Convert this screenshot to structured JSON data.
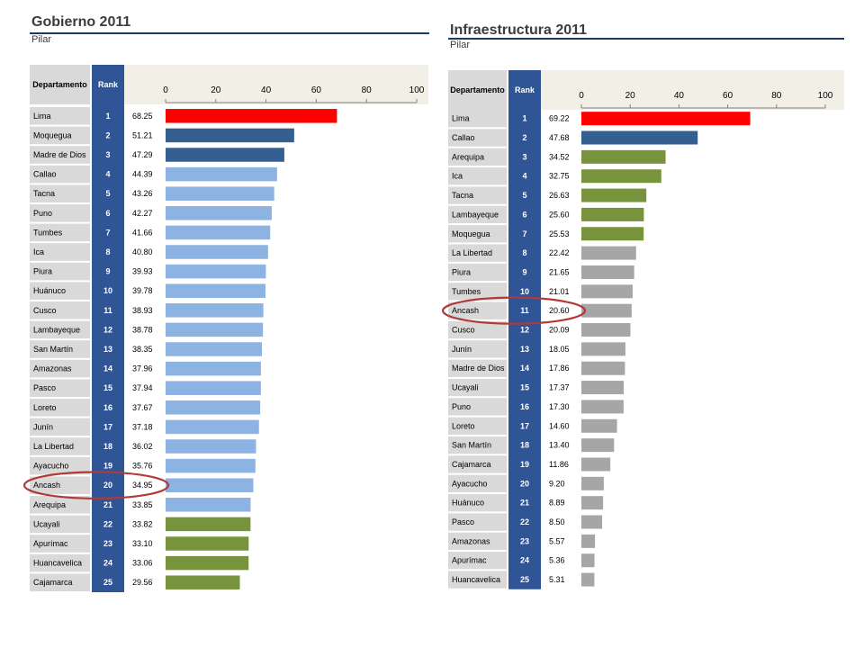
{
  "chart_data": [
    {
      "type": "bar",
      "title": "Gobierno 2011",
      "subtitle": "Pilar",
      "columns": {
        "dept": "Departamento",
        "rank": "Rank"
      },
      "xlim": [
        0,
        100
      ],
      "xticks": [
        0,
        20,
        40,
        60,
        80,
        100
      ],
      "orientation": "horizontal",
      "highlighted_category": "Ancash",
      "categories": [
        "Lima",
        "Moquegua",
        "Madre de Dios",
        "Callao",
        "Tacna",
        "Puno",
        "Tumbes",
        "Ica",
        "Piura",
        "Huánuco",
        "Cusco",
        "Lambayeque",
        "San Martín",
        "Amazonas",
        "Pasco",
        "Loreto",
        "Junín",
        "La Libertad",
        "Ayacucho",
        "Ancash",
        "Arequipa",
        "Ucayali",
        "Apurímac",
        "Huancavelica",
        "Cajamarca"
      ],
      "ranks": [
        1,
        2,
        3,
        4,
        5,
        6,
        7,
        8,
        9,
        10,
        11,
        12,
        13,
        14,
        15,
        16,
        17,
        18,
        19,
        20,
        21,
        22,
        23,
        24,
        25
      ],
      "values": [
        68.25,
        51.21,
        47.29,
        44.39,
        43.26,
        42.27,
        41.66,
        40.8,
        39.93,
        39.78,
        38.93,
        38.78,
        38.35,
        37.96,
        37.94,
        37.67,
        37.18,
        36.02,
        35.76,
        34.95,
        33.85,
        33.82,
        33.1,
        33.06,
        29.56
      ],
      "labels": [
        "68.25",
        "51.21",
        "47.29",
        "44.39",
        "43.26",
        "42.27",
        "41.66",
        "40.80",
        "39.93",
        "39.78",
        "38.93",
        "38.78",
        "38.35",
        "37.96",
        "37.94",
        "37.67",
        "37.18",
        "36.02",
        "35.76",
        "34.95",
        "33.85",
        "33.82",
        "33.10",
        "33.06",
        "29.56"
      ],
      "colors": [
        "#ff0000",
        "#365f91",
        "#365f91",
        "#8db3e2",
        "#8db3e2",
        "#8db3e2",
        "#8db3e2",
        "#8db3e2",
        "#8db3e2",
        "#8db3e2",
        "#8db3e2",
        "#8db3e2",
        "#8db3e2",
        "#8db3e2",
        "#8db3e2",
        "#8db3e2",
        "#8db3e2",
        "#8db3e2",
        "#8db3e2",
        "#8db3e2",
        "#8db3e2",
        "#77933c",
        "#77933c",
        "#77933c",
        "#77933c"
      ]
    },
    {
      "type": "bar",
      "title": "Infraestructura 2011",
      "subtitle": "Pilar",
      "columns": {
        "dept": "Departamento",
        "rank": "Rank"
      },
      "xlim": [
        0,
        100
      ],
      "xticks": [
        0,
        20,
        40,
        60,
        80,
        100
      ],
      "orientation": "horizontal",
      "highlighted_category": "Ancash",
      "categories": [
        "Lima",
        "Callao",
        "Arequipa",
        "Ica",
        "Tacna",
        "Lambayeque",
        "Moquegua",
        "La Libertad",
        "Piura",
        "Tumbes",
        "Ancash",
        "Cusco",
        "Junín",
        "Madre de Dios",
        "Ucayali",
        "Puno",
        "Loreto",
        "San Martín",
        "Cajamarca",
        "Ayacucho",
        "Huánuco",
        "Pasco",
        "Amazonas",
        "Apurímac",
        "Huancavelica"
      ],
      "ranks": [
        1,
        2,
        3,
        4,
        5,
        6,
        7,
        8,
        9,
        10,
        11,
        12,
        13,
        14,
        15,
        16,
        17,
        18,
        19,
        20,
        21,
        22,
        23,
        24,
        25
      ],
      "values": [
        69.22,
        47.68,
        34.52,
        32.75,
        26.63,
        25.6,
        25.53,
        22.42,
        21.65,
        21.01,
        20.6,
        20.09,
        18.05,
        17.86,
        17.37,
        17.3,
        14.6,
        13.4,
        11.86,
        9.2,
        8.89,
        8.5,
        5.57,
        5.36,
        5.31
      ],
      "labels": [
        "69.22",
        "47.68",
        "34.52",
        "32.75",
        "26.63",
        "25.60",
        "25.53",
        "22.42",
        "21.65",
        "21.01",
        "20.60",
        "20.09",
        "18.05",
        "17.86",
        "17.37",
        "17.30",
        "14.60",
        "13.40",
        "11.86",
        "9.20",
        "8.89",
        "8.50",
        "5.57",
        "5.36",
        "5.31"
      ],
      "colors": [
        "#ff0000",
        "#365f91",
        "#77933c",
        "#77933c",
        "#77933c",
        "#77933c",
        "#77933c",
        "#a6a6a6",
        "#a6a6a6",
        "#a6a6a6",
        "#a6a6a6",
        "#a6a6a6",
        "#a6a6a6",
        "#a6a6a6",
        "#a6a6a6",
        "#a6a6a6",
        "#a6a6a6",
        "#a6a6a6",
        "#a6a6a6",
        "#a6a6a6",
        "#a6a6a6",
        "#a6a6a6",
        "#a6a6a6",
        "#a6a6a6",
        "#a6a6a6"
      ]
    }
  ],
  "style": {
    "rank_column_color": "#2f5597",
    "dept_cell_color": "#d9d9d9",
    "header_bg": "#f2efe6",
    "highlight_ellipse_color": "#b03a3a"
  }
}
